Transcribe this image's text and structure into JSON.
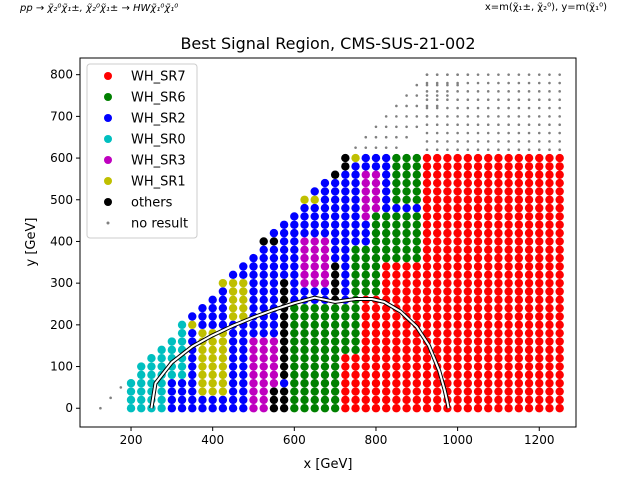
{
  "header": {
    "process": "pp → χ̃₂⁰χ̃₁±, χ̃₂⁰χ̃₁± → HWχ̃₁⁰χ̃₁⁰",
    "axes_note": "x=m(χ̃₁±, χ̃₂⁰), y=m(χ̃₁⁰)"
  },
  "chart_data": {
    "type": "scatter",
    "title": "Best Signal Region, CMS-SUS-21-002",
    "xlabel": "x [GeV]",
    "ylabel": "y [GeV]",
    "xlim": [
      75,
      1290
    ],
    "ylim": [
      -45,
      840
    ],
    "xticks": [
      200,
      400,
      600,
      800,
      1000,
      1200
    ],
    "yticks": [
      0,
      100,
      200,
      300,
      400,
      500,
      600,
      700,
      800
    ],
    "grid": false,
    "legend_position": "top-left",
    "series": [
      {
        "name": "WH_SR7",
        "color": "#ff0000",
        "marker": "dot"
      },
      {
        "name": "WH_SR6",
        "color": "#008000",
        "marker": "dot"
      },
      {
        "name": "WH_SR2",
        "color": "#0000ff",
        "marker": "dot"
      },
      {
        "name": "WH_SR0",
        "color": "#00bfbf",
        "marker": "dot"
      },
      {
        "name": "WH_SR3",
        "color": "#bf00bf",
        "marker": "dot"
      },
      {
        "name": "WH_SR1",
        "color": "#bfbf00",
        "marker": "dot"
      },
      {
        "name": "others",
        "color": "#000000",
        "marker": "dot"
      },
      {
        "name": "no result",
        "color": "#808080",
        "marker": "small-dot"
      }
    ],
    "grid_points": {
      "x_start": 200,
      "x_step": 25,
      "x_end": 1250,
      "y_start": 0,
      "y_step": 20,
      "y_end": 600,
      "max_y_minus_x": -125
    },
    "no_result_points": {
      "x_start": 125,
      "y_start": 0,
      "step": 25,
      "y_max": 800,
      "x_max": 1250,
      "band_width": 100
    },
    "exclusion_contour": {
      "x": [
        250,
        260,
        300,
        350,
        400,
        450,
        500,
        550,
        600,
        650,
        700,
        750,
        790,
        820,
        860,
        900,
        930,
        955,
        968,
        975,
        978
      ],
      "y": [
        0,
        60,
        110,
        148,
        175,
        198,
        218,
        236,
        252,
        265,
        255,
        262,
        262,
        255,
        232,
        195,
        150,
        90,
        45,
        15,
        0
      ]
    }
  }
}
